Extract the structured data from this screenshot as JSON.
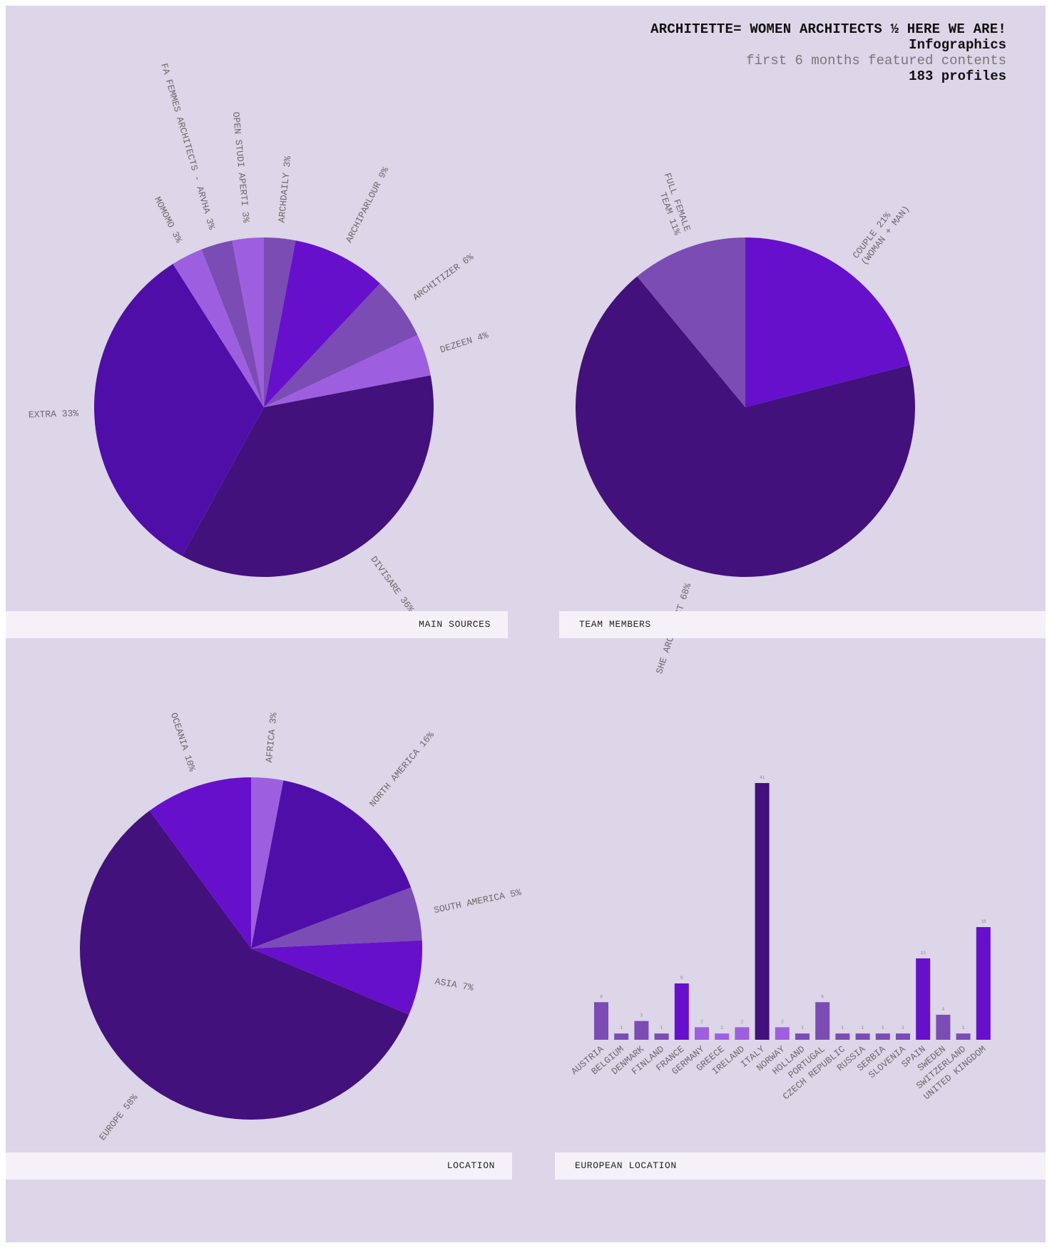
{
  "header": {
    "title": "ARCHITETTE= WOMEN ARCHITECTS ½ HERE WE ARE!",
    "subtitle": "Infographics",
    "period": "first 6 months featured contents",
    "count": "183 profiles"
  },
  "colors": {
    "background": "#ddd5e8",
    "caption_bg": "#f4f2f8",
    "deep": "#42117c",
    "dark": "#4f0ea8",
    "bright": "#6610cc",
    "muted": "#7b4cb4",
    "light": "#9d5fe0"
  },
  "chart_data": [
    {
      "type": "pie",
      "title": "MAIN SOURCES",
      "slices": [
        {
          "label": "ARCHDAILY 3%",
          "value": 3,
          "color": "#7b4cb4"
        },
        {
          "label": "ARCHIPARLOUR 9%",
          "value": 9,
          "color": "#6610cc"
        },
        {
          "label": "ARCHITIZER 6%",
          "value": 6,
          "color": "#7b4cb4"
        },
        {
          "label": "DEZEEN 4%",
          "value": 4,
          "color": "#9d5fe0"
        },
        {
          "label": "DIVISARE 36%",
          "value": 36,
          "color": "#42117c"
        },
        {
          "label": "EXTRA 33%",
          "value": 33,
          "color": "#4f0ea8"
        },
        {
          "label": "MOMOMO 3%",
          "value": 3,
          "color": "#9d5fe0"
        },
        {
          "label": "FA FEMMES ARCHITECTS - ARVHA 3%",
          "value": 3,
          "color": "#7b4cb4"
        },
        {
          "label": "OPEN STUDI APERTI 3%",
          "value": 3,
          "color": "#9d5fe0"
        }
      ]
    },
    {
      "type": "pie",
      "title": "TEAM MEMBERS",
      "slices": [
        {
          "label": [
            "COUPLE 21%",
            "(WOMAN + MAN)"
          ],
          "value": 21,
          "color": "#6610cc"
        },
        {
          "label": [
            "SHE ARCHITECT 68%"
          ],
          "value": 68,
          "color": "#42117c"
        },
        {
          "label": [
            "FULL FEMALE",
            "TEAM 11%"
          ],
          "value": 11,
          "color": "#7b4cb4"
        }
      ]
    },
    {
      "type": "pie",
      "title": "LOCATION",
      "slices": [
        {
          "label": "AFRICA 3%",
          "value": 3,
          "color": "#9d5fe0"
        },
        {
          "label": "NORTH AMERICA 16%",
          "value": 16,
          "color": "#4f0ea8"
        },
        {
          "label": "SOUTH AMERICA 5%",
          "value": 5,
          "color": "#7b4cb4"
        },
        {
          "label": "ASIA 7%",
          "value": 7,
          "color": "#6610cc"
        },
        {
          "label": "EUROPE 58%",
          "value": 58,
          "color": "#42117c"
        },
        {
          "label": "OCEANIA 10%",
          "value": 10,
          "color": "#6610cc"
        }
      ]
    },
    {
      "type": "bar",
      "title": "EUROPEAN LOCATION",
      "categories": [
        "AUSTRIA",
        "BELGIUM",
        "DENMARK",
        "FINLAND",
        "FRANCE",
        "GERMANY",
        "GREECE",
        "IRELAND",
        "ITALY",
        "NORWAY",
        "HOLLAND",
        "PORTUGAL",
        "CZECH REPUBLIC",
        "RUSSIA",
        "SERBIA",
        "SLOVENIA",
        "SPAIN",
        "SWEDEN",
        "SWITZERLAND",
        "UNITED KINGDOM"
      ],
      "values": [
        6,
        1,
        3,
        1,
        9,
        2,
        1,
        2,
        41,
        2,
        1,
        6,
        1,
        1,
        1,
        1,
        13,
        4,
        1,
        18
      ],
      "colors": [
        "#7b4cb4",
        "#7b4cb4",
        "#7b4cb4",
        "#7b4cb4",
        "#6610cc",
        "#9d5fe0",
        "#9d5fe0",
        "#9d5fe0",
        "#42117c",
        "#9d5fe0",
        "#7b4cb4",
        "#7b4cb4",
        "#7b4cb4",
        "#7b4cb4",
        "#7b4cb4",
        "#7b4cb4",
        "#6610cc",
        "#7b4cb4",
        "#7b4cb4",
        "#6610cc"
      ],
      "ylim": [
        0,
        41
      ]
    }
  ]
}
